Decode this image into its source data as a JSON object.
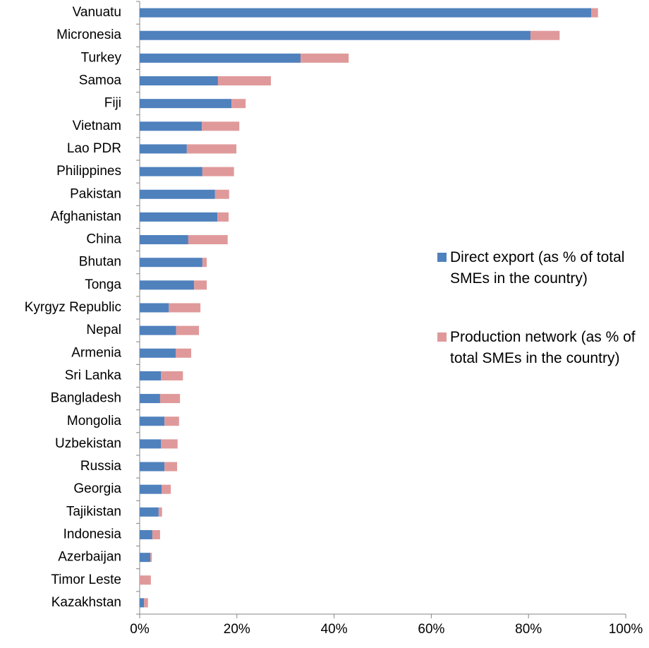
{
  "chart_data": {
    "type": "stacked-barh",
    "categories": [
      "Vanuatu",
      "Micronesia",
      "Turkey",
      "Samoa",
      "Fiji",
      "Vietnam",
      "Lao PDR",
      "Philippines",
      "Pakistan",
      "Afghanistan",
      "China",
      "Bhutan",
      "Tonga",
      "Kyrgyz Republic",
      "Nepal",
      "Armenia",
      "Sri Lanka",
      "Bangladesh",
      "Mongolia",
      "Uzbekistan",
      "Russia",
      "Georgia",
      "Tajikistan",
      "Indonesia",
      "Azerbaijan",
      "Timor Leste",
      "Kazakhstan"
    ],
    "series": [
      {
        "name": "Direct export (as % of total SMEs in the country)",
        "color": "#4f81bd",
        "values": [
          92.9,
          80.4,
          33.1,
          16.1,
          18.9,
          12.8,
          9.7,
          12.9,
          15.5,
          16.0,
          10.0,
          12.9,
          11.2,
          6.0,
          7.5,
          7.4,
          4.4,
          4.2,
          5.1,
          4.4,
          5.1,
          4.5,
          3.9,
          2.6,
          2.2,
          0,
          0.9
        ]
      },
      {
        "name": "Production network (as % of total SMEs in the country)",
        "color": "#e0999a",
        "values": [
          1.4,
          6.0,
          9.9,
          10.9,
          2.9,
          7.7,
          10.2,
          6.5,
          2.9,
          2.3,
          8.1,
          0.9,
          2.6,
          6.5,
          4.7,
          3.2,
          4.5,
          4.1,
          3.0,
          3.4,
          2.6,
          1.9,
          0.7,
          1.6,
          0.3,
          2.3,
          0.8
        ]
      }
    ],
    "xlim": [
      0,
      100
    ],
    "xticks": [
      {
        "value": 0,
        "label": "0%"
      },
      {
        "value": 20,
        "label": "20%"
      },
      {
        "value": 40,
        "label": "40%"
      },
      {
        "value": 60,
        "label": "60%"
      },
      {
        "value": 80,
        "label": "80%"
      },
      {
        "value": 100,
        "label": "100%"
      }
    ],
    "legend": "right"
  }
}
